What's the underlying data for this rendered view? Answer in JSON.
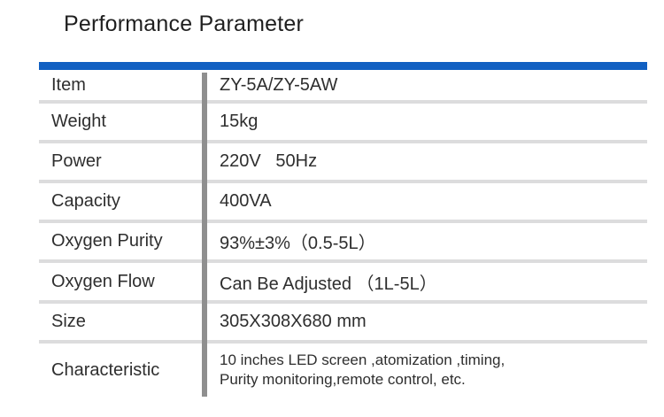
{
  "page": {
    "title": "Performance Parameter"
  },
  "colors": {
    "accent_blue": "#1160c2",
    "column_divider_gray": "#8f8f8f",
    "row_separator_gray": "#dcdcdd",
    "text_dark": "#2e2e2e"
  },
  "table": {
    "rows": [
      {
        "label": "Item",
        "value": "ZY-5A/ZY-5AW"
      },
      {
        "label": "Weight",
        "value": "15kg"
      },
      {
        "label": "Power",
        "value": "220V   50Hz"
      },
      {
        "label": "Capacity",
        "value": "400VA"
      },
      {
        "label": "Oxygen Purity",
        "value": "93%±3%（0.5-5L）"
      },
      {
        "label": "Oxygen Flow",
        "value": "Can Be Adjusted （1L-5L）"
      },
      {
        "label": "Size",
        "value": "305X308X680 mm"
      },
      {
        "label": "Characteristic",
        "value": "10 inches LED screen ,atomization ,timing,\nPurity monitoring,remote control, etc."
      }
    ]
  }
}
